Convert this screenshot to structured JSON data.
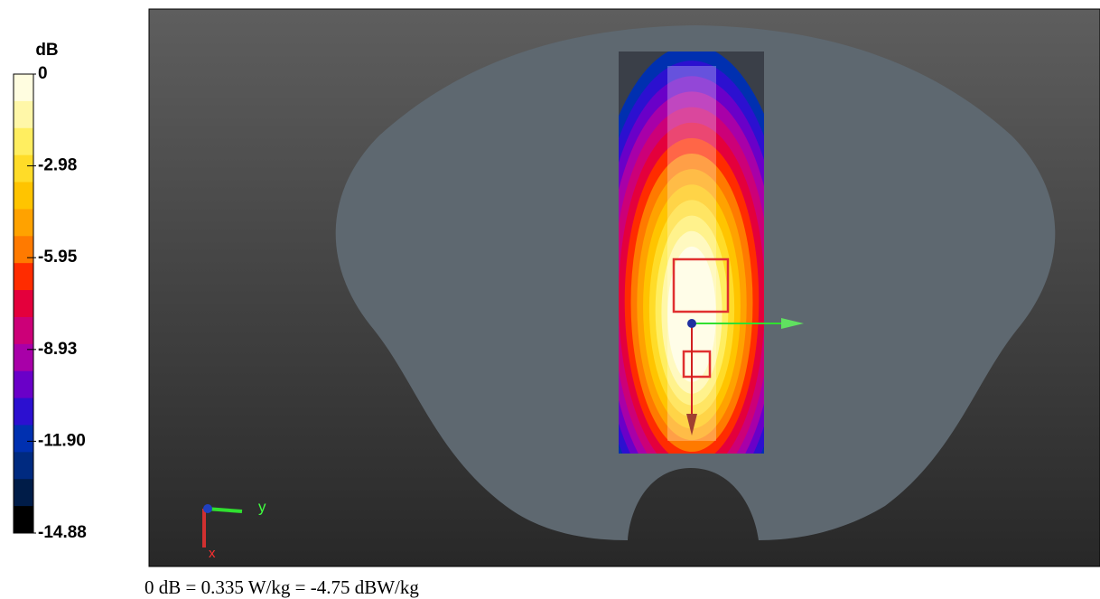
{
  "colorbar": {
    "unit": "dB",
    "ticks": [
      "0",
      "-2.98",
      "-5.95",
      "-8.93",
      "-11.90",
      "-14.88"
    ]
  },
  "view": {
    "axes": {
      "y": "y",
      "x": "x"
    }
  },
  "caption": "0 dB = 0.335 W/kg = -4.75 dBW/kg"
}
